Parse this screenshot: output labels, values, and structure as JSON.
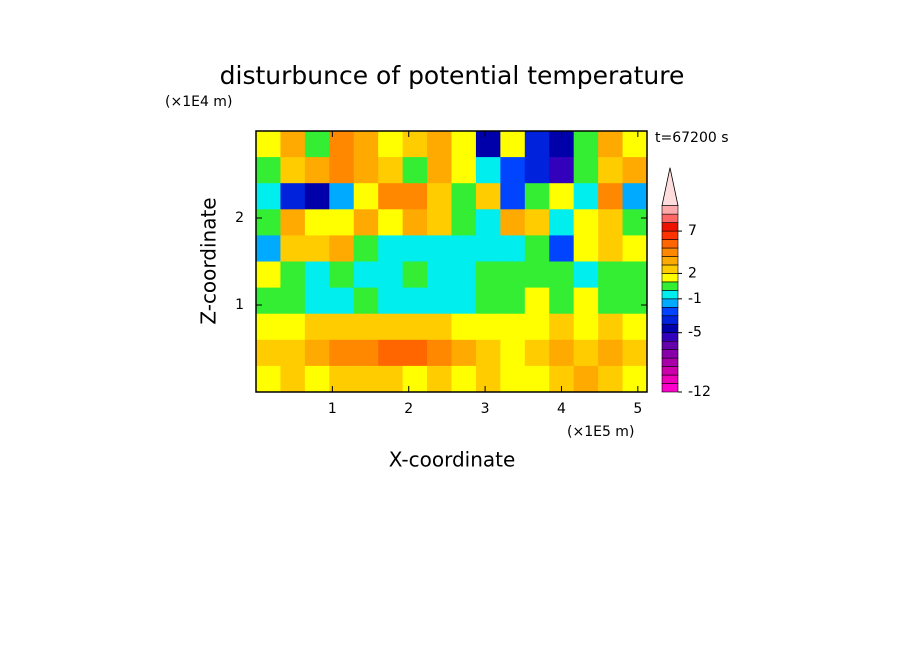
{
  "chart_data": {
    "type": "contour",
    "title": "disturbunce of potential temperature",
    "x_label": "X-coordinate",
    "y_label": "Z-coordinate",
    "x_unit": "(×1E5 m)",
    "y_unit": "(×1E4 m)",
    "annotation": "t=67200 s",
    "xlim": [
      0,
      5.12
    ],
    "ylim": [
      0,
      3
    ],
    "xticks": [
      1,
      2,
      3,
      4,
      5
    ],
    "yticks": [
      1,
      2
    ],
    "x": [
      0.16,
      0.48,
      0.8,
      1.12,
      1.44,
      1.76,
      2.08,
      2.4,
      2.72,
      3.04,
      3.36,
      3.68,
      4.0,
      4.32,
      4.64,
      4.96
    ],
    "y": [
      2.85,
      2.55,
      2.25,
      1.95,
      1.65,
      1.35,
      1.05,
      0.75,
      0.45,
      0.15
    ],
    "z": [
      [
        1,
        3,
        0,
        4,
        3,
        1,
        2,
        3,
        1,
        -5,
        1,
        -4,
        -5,
        0,
        3,
        1
      ],
      [
        0,
        2,
        3,
        4,
        3,
        2,
        0,
        3,
        1,
        -1,
        -3,
        -4,
        -6,
        0,
        2,
        3
      ],
      [
        -1,
        -4,
        -5,
        -2,
        1,
        4,
        4,
        2,
        0,
        2,
        -3,
        0,
        1,
        -1,
        4,
        -2
      ],
      [
        0,
        3,
        1,
        1,
        3,
        1,
        3,
        2,
        0,
        -1,
        3,
        2,
        -1,
        1,
        2,
        0
      ],
      [
        -2,
        2,
        2,
        3,
        0,
        -1,
        -1,
        -1,
        -1,
        -1,
        -1,
        0,
        -3,
        1,
        2,
        1
      ],
      [
        1,
        0,
        -1,
        0,
        -1,
        -1,
        0,
        -1,
        -1,
        0,
        0,
        0,
        0,
        -1,
        0,
        0
      ],
      [
        0,
        0,
        -1,
        -1,
        0,
        -1,
        -1,
        -1,
        -1,
        0,
        0,
        1,
        0,
        1,
        0,
        0
      ],
      [
        1,
        1,
        2,
        2,
        2,
        2,
        2,
        2,
        1,
        1,
        1,
        1,
        2,
        1,
        2,
        1
      ],
      [
        2,
        2,
        3,
        4,
        4,
        5,
        5,
        4,
        3,
        2,
        1,
        2,
        3,
        2,
        3,
        2
      ],
      [
        1,
        2,
        1,
        2,
        2,
        2,
        1,
        2,
        1,
        2,
        1,
        1,
        2,
        3,
        2,
        1
      ]
    ],
    "levels": [
      -12,
      -11,
      -10,
      -9,
      -8,
      -7,
      -6,
      -5,
      -4,
      -3,
      -2,
      -1,
      0,
      1,
      2,
      3,
      4,
      5,
      6,
      7,
      8,
      9,
      10
    ],
    "colors": [
      "#ff00cc",
      "#ee00bb",
      "#cc00aa",
      "#aa00aa",
      "#8800aa",
      "#6600aa",
      "#3300bb",
      "#0000aa",
      "#0022dd",
      "#0044ff",
      "#00aaff",
      "#00eeee",
      "#33ee33",
      "#ffff00",
      "#ffcc00",
      "#ffaa00",
      "#ff8800",
      "#ff6600",
      "#ff3300",
      "#ee1100",
      "#ff6666",
      "#ffaaaa",
      "#ffdddd"
    ],
    "colorbar_ticks": [
      -12,
      -5,
      -1,
      2,
      7
    ]
  }
}
